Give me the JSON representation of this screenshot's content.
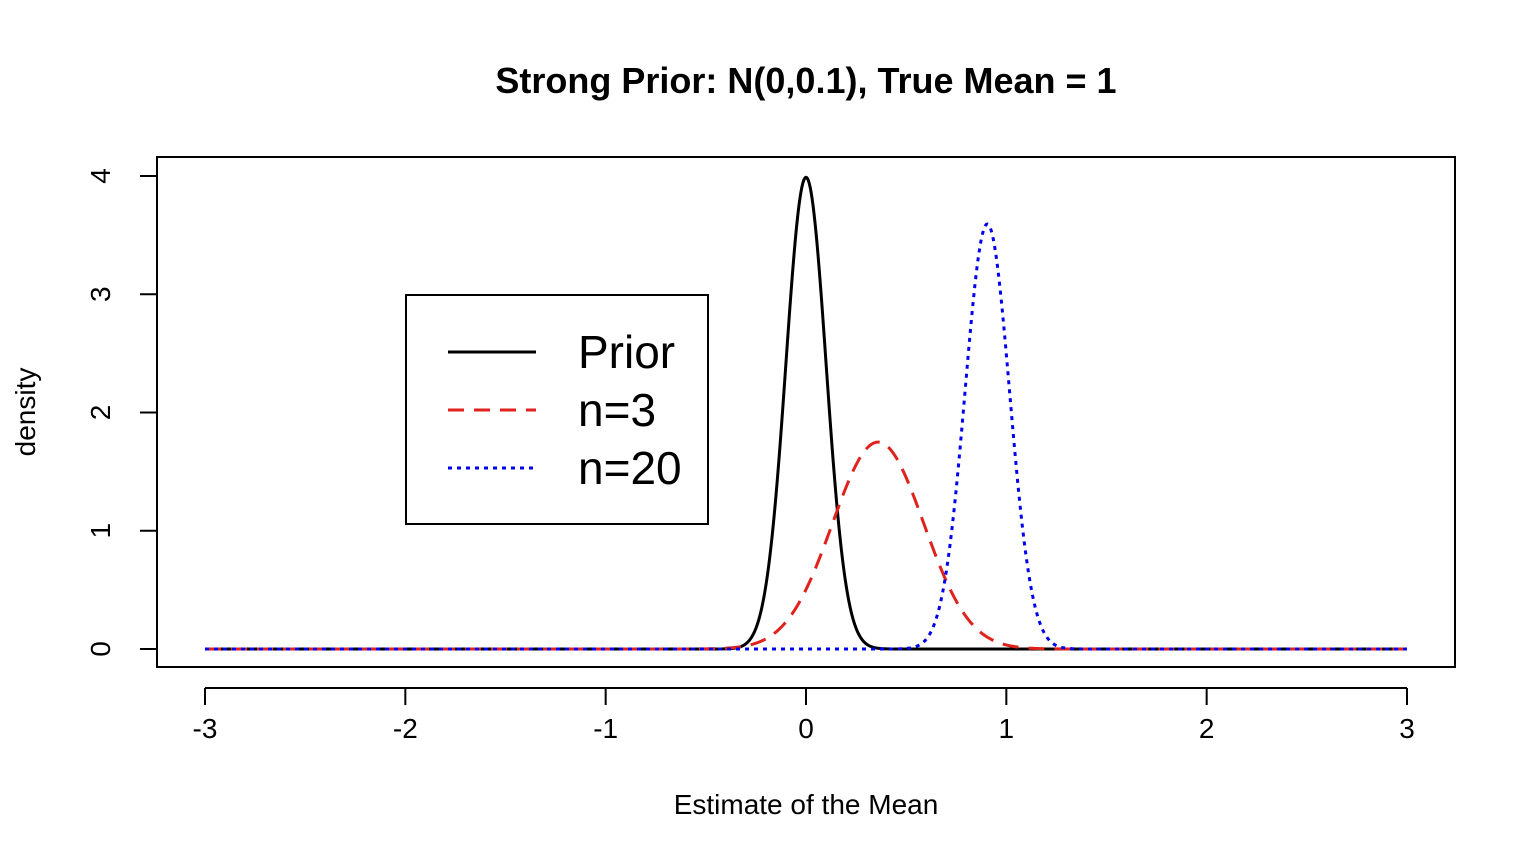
{
  "chart_data": {
    "type": "line",
    "title": "Strong Prior: N(0,0.1), True Mean = 1",
    "xlabel": "Estimate of the Mean",
    "ylabel": "density",
    "xlim": [
      -3,
      3
    ],
    "ylim": [
      0,
      4
    ],
    "xticks": [
      -3,
      -2,
      -1,
      0,
      1,
      2,
      3
    ],
    "xtick_labels": [
      "-3",
      "-2",
      "-1",
      "0",
      "1",
      "2",
      "3"
    ],
    "yticks": [
      0,
      1,
      2,
      3,
      4
    ],
    "ytick_labels": [
      "0",
      "1",
      "2",
      "3",
      "4"
    ],
    "grid": false,
    "legend_position": "center-left",
    "series": [
      {
        "name": "Prior",
        "distribution": "normal",
        "mean": 0,
        "sd": 0.1,
        "color": "#000000",
        "line_style": "solid"
      },
      {
        "name": "n=3",
        "distribution": "normal",
        "mean": 0.36,
        "sd": 0.228,
        "color": "#E0211C",
        "line_style": "dashed"
      },
      {
        "name": "n=20",
        "distribution": "normal",
        "mean": 0.905,
        "sd": 0.111,
        "color": "#0000EE",
        "line_style": "dotted"
      }
    ]
  }
}
